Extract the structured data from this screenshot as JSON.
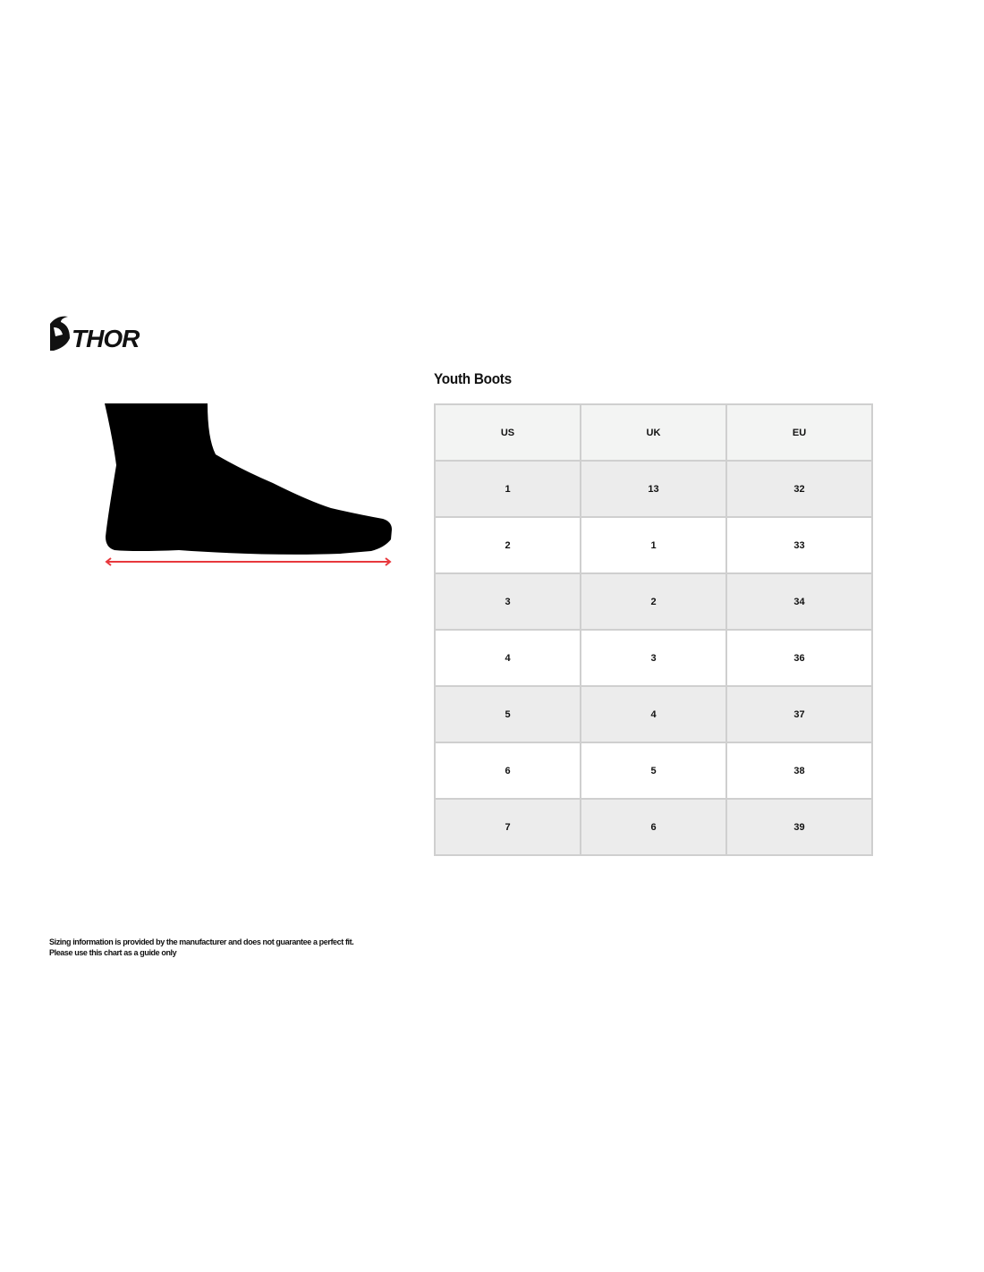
{
  "brand": {
    "logo_text": "THOR"
  },
  "title": "Youth Boots",
  "table": {
    "headers": [
      "US",
      "UK",
      "EU"
    ],
    "rows": [
      [
        "1",
        "13",
        "32"
      ],
      [
        "2",
        "1",
        "33"
      ],
      [
        "3",
        "2",
        "34"
      ],
      [
        "4",
        "3",
        "36"
      ],
      [
        "5",
        "4",
        "37"
      ],
      [
        "6",
        "5",
        "38"
      ],
      [
        "7",
        "6",
        "39"
      ]
    ]
  },
  "colors": {
    "measure_arrow": "#e8383d",
    "header_bg": "#f3f4f3",
    "row_alt_bg": "#ececec"
  },
  "footnote": {
    "line1": "Sizing information is provided by the manufacturer and does not guarantee a perfect fit.",
    "line2": "Please use this chart as a guide only"
  }
}
